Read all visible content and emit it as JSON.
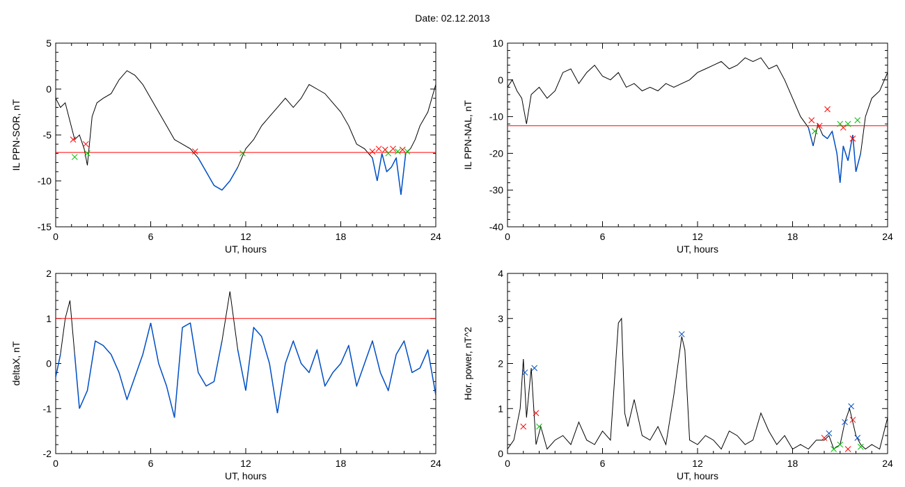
{
  "page": {
    "date_label": "Date:",
    "date_value": "02.12.2013"
  },
  "colors": {
    "data_line": "#000000",
    "threshold": "#ff0000",
    "below_threshold": "#0050c8",
    "marker_red": "#ff0000",
    "marker_green": "#00c000",
    "marker_blue": "#0050c8"
  },
  "chart_data": [
    {
      "type": "line",
      "title": "",
      "xlabel": "UT, hours",
      "ylabel": "IL PPN-SOR, nT",
      "xlim": [
        0,
        24
      ],
      "ylim": [
        -15,
        5
      ],
      "xticks": [
        0,
        6,
        12,
        18,
        24
      ],
      "yticks": [
        -15,
        -10,
        -5,
        0,
        5
      ],
      "threshold": -6.9,
      "series": [
        {
          "x": [
            0,
            0.3,
            0.6,
            0.9,
            1.2,
            1.5,
            1.8,
            2.0,
            2.3,
            2.6,
            3.0,
            3.5,
            4.0,
            4.5,
            5.0,
            5.5,
            6.0,
            6.5,
            7.0,
            7.5,
            8.0,
            8.5,
            9.0,
            9.5,
            10.0,
            10.5,
            11.0,
            11.5,
            12.0,
            12.5,
            13.0,
            13.5,
            14.0,
            14.5,
            15.0,
            15.5,
            16.0,
            16.5,
            17.0,
            17.5,
            18.0,
            18.5,
            19.0,
            19.5,
            20.0,
            20.3,
            20.6,
            20.9,
            21.2,
            21.5,
            21.8,
            22.1,
            22.4,
            22.7,
            23.0,
            23.5,
            24.0
          ],
          "y": [
            -1.0,
            -2.0,
            -1.5,
            -3.5,
            -5.5,
            -5.0,
            -6.5,
            -8.3,
            -3.0,
            -1.5,
            -1.0,
            -0.5,
            1.0,
            2.0,
            1.5,
            0.5,
            -1.0,
            -2.5,
            -4.0,
            -5.5,
            -6.0,
            -6.5,
            -7.5,
            -9.0,
            -10.5,
            -11.0,
            -10.0,
            -8.5,
            -6.5,
            -5.5,
            -4.0,
            -3.0,
            -2.0,
            -1.0,
            -2.0,
            -1.0,
            0.5,
            0.0,
            -0.5,
            -1.5,
            -2.5,
            -4.0,
            -6.0,
            -6.5,
            -7.5,
            -10.0,
            -7.0,
            -9.0,
            -8.5,
            -7.5,
            -11.5,
            -7.0,
            -6.5,
            -5.5,
            -4.0,
            -2.5,
            0.5
          ]
        }
      ],
      "markers": [
        {
          "x": 1.1,
          "y": -5.5,
          "color": "red"
        },
        {
          "x": 1.2,
          "y": -7.4,
          "color": "green"
        },
        {
          "x": 1.9,
          "y": -6.0,
          "color": "red"
        },
        {
          "x": 2.0,
          "y": -7.0,
          "color": "green"
        },
        {
          "x": 8.8,
          "y": -6.8,
          "color": "red"
        },
        {
          "x": 11.8,
          "y": -7.0,
          "color": "green"
        },
        {
          "x": 20.0,
          "y": -6.8,
          "color": "red"
        },
        {
          "x": 20.4,
          "y": -6.5,
          "color": "red"
        },
        {
          "x": 20.8,
          "y": -6.6,
          "color": "red"
        },
        {
          "x": 21.0,
          "y": -7.0,
          "color": "green"
        },
        {
          "x": 21.3,
          "y": -6.5,
          "color": "red"
        },
        {
          "x": 21.6,
          "y": -6.8,
          "color": "green"
        },
        {
          "x": 21.9,
          "y": -6.6,
          "color": "red"
        },
        {
          "x": 22.2,
          "y": -6.8,
          "color": "green"
        }
      ]
    },
    {
      "type": "line",
      "title": "",
      "xlabel": "UT, hours",
      "ylabel": "IL PPN-NAL, nT",
      "xlim": [
        0,
        24
      ],
      "ylim": [
        -40,
        10
      ],
      "xticks": [
        0,
        6,
        12,
        18,
        24
      ],
      "yticks": [
        -40,
        -30,
        -20,
        -10,
        0,
        10
      ],
      "threshold": -12.5,
      "series": [
        {
          "x": [
            0,
            0.3,
            0.6,
            0.9,
            1.2,
            1.5,
            2.0,
            2.5,
            3.0,
            3.5,
            4.0,
            4.5,
            5.0,
            5.5,
            6.0,
            6.5,
            7.0,
            7.5,
            8.0,
            8.5,
            9.0,
            9.5,
            10.0,
            10.5,
            11.0,
            11.5,
            12.0,
            12.5,
            13.0,
            13.5,
            14.0,
            14.5,
            15.0,
            15.5,
            16.0,
            16.5,
            17.0,
            17.5,
            18.0,
            18.5,
            19.0,
            19.3,
            19.6,
            19.9,
            20.2,
            20.5,
            20.8,
            21.0,
            21.2,
            21.5,
            21.8,
            22.0,
            22.3,
            22.6,
            23.0,
            23.5,
            24.0
          ],
          "y": [
            -2,
            0,
            -3,
            -5,
            -12,
            -4,
            -2,
            -5,
            -3,
            2,
            3,
            -1,
            2,
            4,
            1,
            0,
            2,
            -2,
            -1,
            -3,
            -2,
            -3,
            -1,
            -2,
            -1,
            0,
            2,
            3,
            4,
            5,
            3,
            4,
            6,
            5,
            6,
            3,
            4,
            0,
            -5,
            -10,
            -13,
            -18,
            -12,
            -15,
            -16,
            -14,
            -20,
            -28,
            -18,
            -22,
            -15,
            -25,
            -20,
            -10,
            -5,
            -3,
            2
          ]
        }
      ],
      "markers": [
        {
          "x": 19.2,
          "y": -11.0,
          "color": "red"
        },
        {
          "x": 19.4,
          "y": -14.0,
          "color": "green"
        },
        {
          "x": 19.7,
          "y": -12.5,
          "color": "red"
        },
        {
          "x": 20.2,
          "y": -8.0,
          "color": "red"
        },
        {
          "x": 21.0,
          "y": -12.0,
          "color": "green"
        },
        {
          "x": 21.2,
          "y": -13.0,
          "color": "red"
        },
        {
          "x": 21.5,
          "y": -12.0,
          "color": "green"
        },
        {
          "x": 21.8,
          "y": -16.0,
          "color": "red"
        },
        {
          "x": 22.1,
          "y": -11.0,
          "color": "green"
        }
      ]
    },
    {
      "type": "line",
      "title": "",
      "xlabel": "UT, hours",
      "ylabel": "deltaX, nT",
      "xlim": [
        0,
        24
      ],
      "ylim": [
        -2,
        2
      ],
      "xticks": [
        0,
        6,
        12,
        18,
        24
      ],
      "yticks": [
        -2,
        -1,
        0,
        1,
        2
      ],
      "threshold": 1.0,
      "series": [
        {
          "x": [
            0,
            0.3,
            0.6,
            0.9,
            1.2,
            1.5,
            2.0,
            2.5,
            3.0,
            3.5,
            4.0,
            4.5,
            5.0,
            5.5,
            6.0,
            6.5,
            7.0,
            7.5,
            8.0,
            8.5,
            9.0,
            9.5,
            10.0,
            10.5,
            11.0,
            11.5,
            12.0,
            12.5,
            13.0,
            13.5,
            14.0,
            14.5,
            15.0,
            15.5,
            16.0,
            16.5,
            17.0,
            17.5,
            18.0,
            18.5,
            19.0,
            19.5,
            20.0,
            20.5,
            21.0,
            21.5,
            22.0,
            22.5,
            23.0,
            23.5,
            24.0
          ],
          "y": [
            -0.3,
            0.2,
            1.0,
            1.4,
            0.2,
            -1.0,
            -0.6,
            0.5,
            0.4,
            0.2,
            -0.2,
            -0.8,
            -0.3,
            0.2,
            0.9,
            0.0,
            -0.5,
            -1.2,
            0.8,
            0.9,
            -0.2,
            -0.5,
            -0.4,
            0.5,
            1.6,
            0.3,
            -0.6,
            0.8,
            0.6,
            0.0,
            -1.1,
            0.0,
            0.5,
            0.0,
            -0.2,
            0.3,
            -0.5,
            -0.2,
            0.0,
            0.4,
            -0.5,
            0.0,
            0.5,
            -0.2,
            -0.6,
            0.2,
            0.5,
            -0.2,
            -0.1,
            0.3,
            -0.7
          ]
        }
      ],
      "markers": []
    },
    {
      "type": "line",
      "title": "",
      "xlabel": "UT, hours",
      "ylabel": "Hor. power, nT^2",
      "xlim": [
        0,
        24
      ],
      "ylim": [
        0,
        4
      ],
      "xticks": [
        0,
        6,
        12,
        18,
        24
      ],
      "yticks": [
        0,
        1,
        2,
        3,
        4
      ],
      "threshold": null,
      "series": [
        {
          "x": [
            0,
            0.4,
            0.8,
            1.0,
            1.2,
            1.5,
            1.8,
            2.1,
            2.5,
            3.0,
            3.5,
            4.0,
            4.5,
            5.0,
            5.5,
            6.0,
            6.5,
            7.0,
            7.2,
            7.4,
            7.6,
            8.0,
            8.5,
            9.0,
            9.5,
            10.0,
            10.5,
            11.0,
            11.2,
            11.5,
            12.0,
            12.5,
            13.0,
            13.5,
            14.0,
            14.5,
            15.0,
            15.5,
            16.0,
            16.5,
            17.0,
            17.5,
            18.0,
            18.5,
            19.0,
            19.5,
            20.0,
            20.3,
            20.6,
            21.0,
            21.3,
            21.6,
            22.0,
            22.3,
            22.6,
            23.0,
            23.5,
            24.0
          ],
          "y": [
            0.1,
            0.3,
            1.0,
            2.1,
            0.8,
            1.9,
            0.2,
            0.6,
            0.1,
            0.3,
            0.4,
            0.2,
            0.7,
            0.3,
            0.2,
            0.5,
            0.3,
            2.9,
            3.0,
            0.9,
            0.6,
            1.2,
            0.4,
            0.3,
            0.6,
            0.2,
            1.3,
            2.6,
            2.3,
            0.3,
            0.2,
            0.4,
            0.3,
            0.1,
            0.5,
            0.4,
            0.2,
            0.3,
            0.9,
            0.5,
            0.2,
            0.4,
            0.1,
            0.2,
            0.1,
            0.3,
            0.3,
            0.4,
            0.1,
            0.2,
            0.7,
            1.0,
            0.4,
            0.2,
            0.1,
            0.2,
            0.1,
            0.8
          ]
        }
      ],
      "markers": [
        {
          "x": 1.1,
          "y": 1.8,
          "color": "blue"
        },
        {
          "x": 1.0,
          "y": 0.6,
          "color": "red"
        },
        {
          "x": 1.7,
          "y": 1.9,
          "color": "blue"
        },
        {
          "x": 1.8,
          "y": 0.9,
          "color": "red"
        },
        {
          "x": 2.0,
          "y": 0.6,
          "color": "green"
        },
        {
          "x": 11.0,
          "y": 2.65,
          "color": "blue"
        },
        {
          "x": 20.0,
          "y": 0.35,
          "color": "red"
        },
        {
          "x": 20.3,
          "y": 0.45,
          "color": "blue"
        },
        {
          "x": 20.6,
          "y": 0.1,
          "color": "green"
        },
        {
          "x": 21.0,
          "y": 0.2,
          "color": "green"
        },
        {
          "x": 21.3,
          "y": 0.7,
          "color": "blue"
        },
        {
          "x": 21.5,
          "y": 0.1,
          "color": "red"
        },
        {
          "x": 21.7,
          "y": 1.05,
          "color": "blue"
        },
        {
          "x": 21.8,
          "y": 0.75,
          "color": "red"
        },
        {
          "x": 22.1,
          "y": 0.35,
          "color": "blue"
        },
        {
          "x": 22.3,
          "y": 0.15,
          "color": "green"
        }
      ]
    }
  ]
}
